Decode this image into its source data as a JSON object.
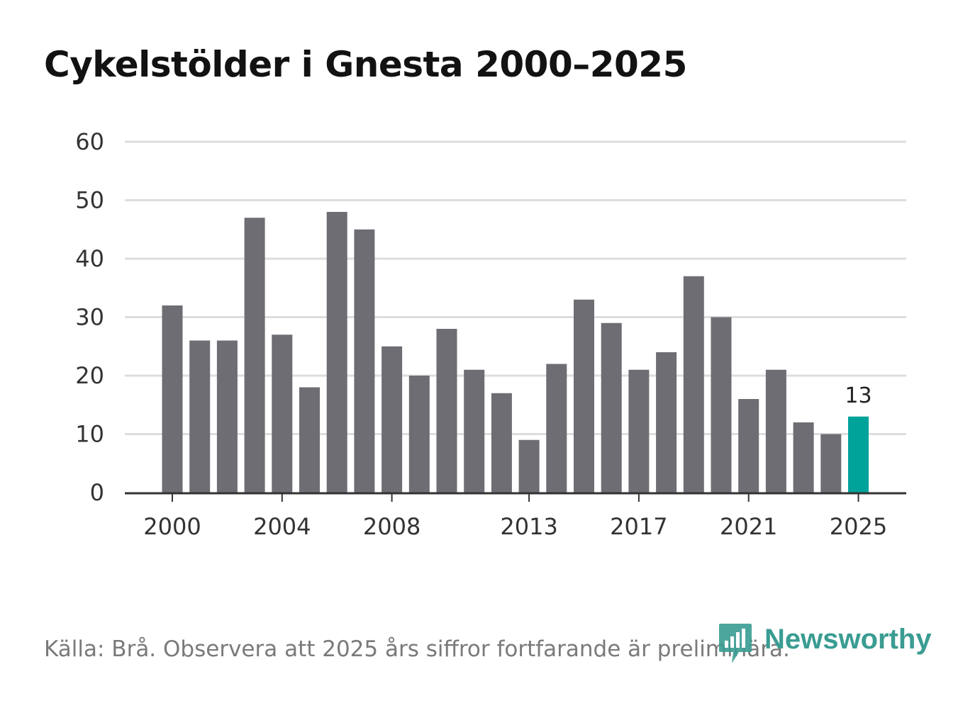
{
  "title": "Cykelstölder i Gnesta 2000–2025",
  "footer": "Källa: Brå. Observera att 2025 års siffror fortfarande är preliminära.",
  "logo_text": "Newsworthy",
  "logo_icon": "newsworthy-bar-chart-icon",
  "colors": {
    "bar": "#6e6d73",
    "highlight": "#00a39a",
    "grid": "#dddddd",
    "axis": "#333333",
    "logo": "#3a9c92"
  },
  "chart_data": {
    "type": "bar",
    "title": "Cykelstölder i Gnesta 2000–2025",
    "xlabel": "",
    "ylabel": "",
    "categories": [
      2000,
      2001,
      2002,
      2003,
      2004,
      2005,
      2006,
      2007,
      2008,
      2009,
      2010,
      2011,
      2012,
      2013,
      2014,
      2015,
      2016,
      2017,
      2018,
      2019,
      2020,
      2021,
      2022,
      2023,
      2024,
      2025
    ],
    "values": [
      32,
      26,
      26,
      47,
      27,
      18,
      48,
      45,
      25,
      20,
      28,
      21,
      17,
      9,
      22,
      33,
      29,
      21,
      24,
      37,
      30,
      16,
      21,
      12,
      10,
      13
    ],
    "highlight_index": 25,
    "data_labels": [
      {
        "index": 25,
        "text": "13"
      }
    ],
    "ylim": [
      0,
      60
    ],
    "yticks": [
      0,
      10,
      20,
      30,
      40,
      50,
      60
    ],
    "xticks": [
      "2000",
      "2004",
      "2008",
      "2013",
      "2017",
      "2021",
      "2025"
    ],
    "grid": true,
    "legend": "none"
  }
}
